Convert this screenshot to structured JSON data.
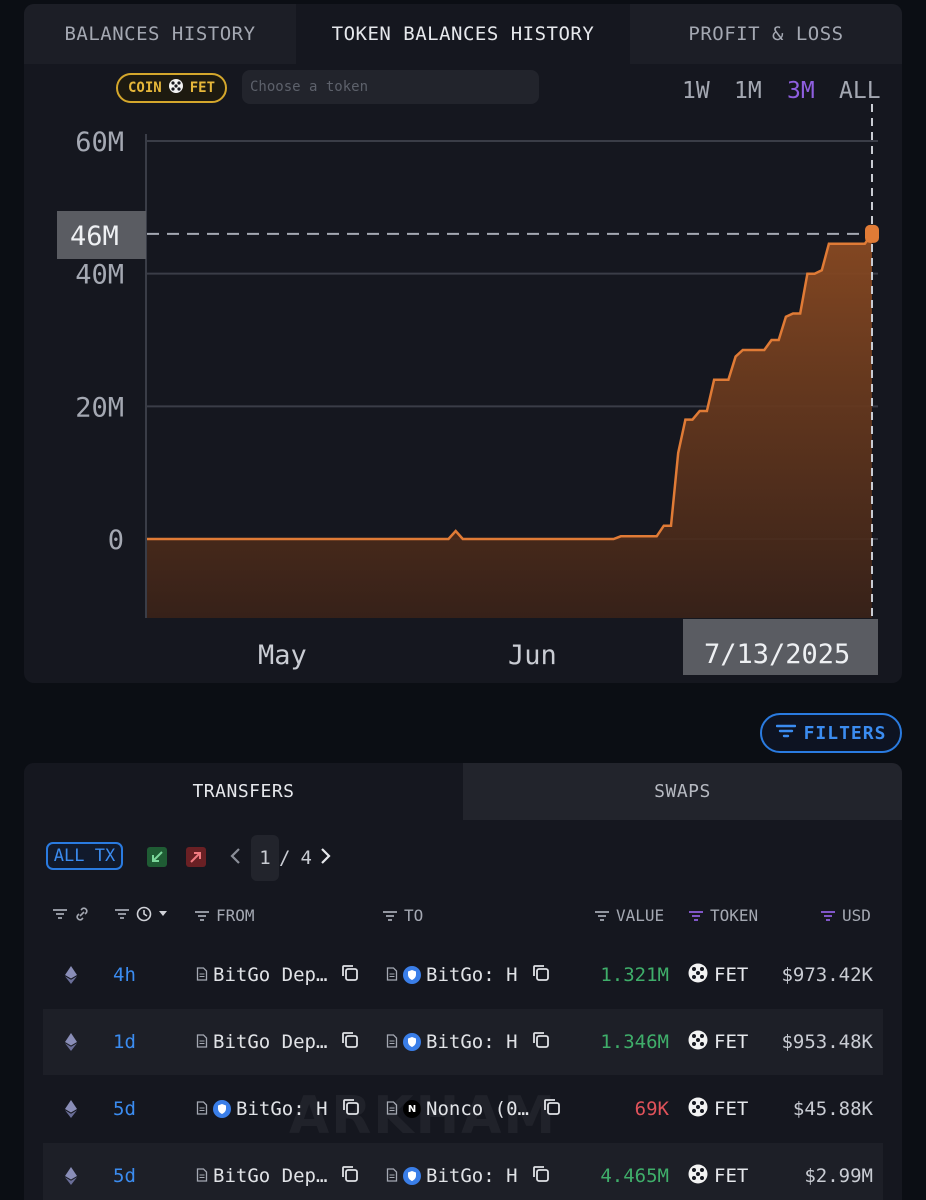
{
  "tabs": [
    "BALANCES HISTORY",
    "TOKEN BALANCES HISTORY",
    "PROFIT & LOSS"
  ],
  "coin_badge": {
    "prefix": "COIN",
    "symbol": "FET"
  },
  "token_search": {
    "placeholder": "Choose a token"
  },
  "time_ranges": [
    "1W",
    "1M",
    "3M",
    "ALL"
  ],
  "selected_range": "3M",
  "colors": {
    "accent": "#8f5fe0",
    "line": "#e07b36",
    "inflow": "#3fae6a",
    "outflow": "#e0525a",
    "link": "#3b8cf0"
  },
  "chart_data": {
    "type": "area",
    "title": "",
    "x_labels": [
      "May",
      "Jun"
    ],
    "y_ticks": [
      "0",
      "20M",
      "40M",
      "60M"
    ],
    "ylim": [
      -12000000,
      60000000
    ],
    "hover": {
      "value_label": "46M",
      "date_label": "7/13/2025",
      "value": 46000000
    },
    "series": [
      {
        "values_millions": [
          0,
          0,
          0,
          0,
          0,
          0,
          0,
          0,
          0,
          0,
          0,
          0,
          0,
          0,
          0,
          0,
          0,
          0,
          0,
          0,
          0,
          0,
          0,
          0,
          0,
          0,
          0,
          0,
          0,
          0,
          0,
          0,
          0,
          0,
          0,
          0,
          0,
          0,
          0,
          0,
          0,
          0,
          0,
          1.2,
          0,
          0,
          0,
          0,
          0,
          0,
          0,
          0,
          0,
          0,
          0,
          0,
          0,
          0,
          0,
          0,
          0,
          0,
          0,
          0,
          0,
          0,
          0.4,
          0.4,
          0.4,
          0.4,
          0.4,
          0.4,
          2,
          2,
          13,
          18,
          18,
          19.3,
          19.3,
          24,
          24,
          24,
          27.5,
          28.5,
          28.5,
          28.5,
          28.5,
          30,
          30,
          33.5,
          34,
          34,
          40,
          40,
          40.5,
          44.5,
          44.5,
          44.5,
          44.5,
          44.5,
          44.5,
          46
        ]
      }
    ],
    "grid": true
  },
  "filters_label": "FILTERS",
  "transfer_tabs": [
    "TRANSFERS",
    "SWAPS"
  ],
  "alltx_label": "ALL TX",
  "pagination": {
    "current": "1",
    "sep": "/",
    "total": "4"
  },
  "columns": {
    "from": "FROM",
    "to": "TO",
    "value": "VALUE",
    "token": "TOKEN",
    "usd": "USD"
  },
  "rows": [
    {
      "age": "4h",
      "from": "BitGo Dep…",
      "to": "BitGo: H",
      "value": "1.321M",
      "token": "FET",
      "usd": "$973.42K",
      "dir": "in"
    },
    {
      "age": "1d",
      "from": "BitGo Dep…",
      "to": "BitGo: H",
      "value": "1.346M",
      "token": "FET",
      "usd": "$953.48K",
      "dir": "in"
    },
    {
      "age": "5d",
      "from": "BitGo: H",
      "to": "Nonco (0…",
      "value": "69K",
      "token": "FET",
      "usd": "$45.88K",
      "dir": "out"
    },
    {
      "age": "5d",
      "from": "BitGo Dep…",
      "to": "BitGo: H",
      "value": "4.465M",
      "token": "FET",
      "usd": "$2.99M",
      "dir": "in"
    }
  ],
  "watermark": "ARKHAM"
}
